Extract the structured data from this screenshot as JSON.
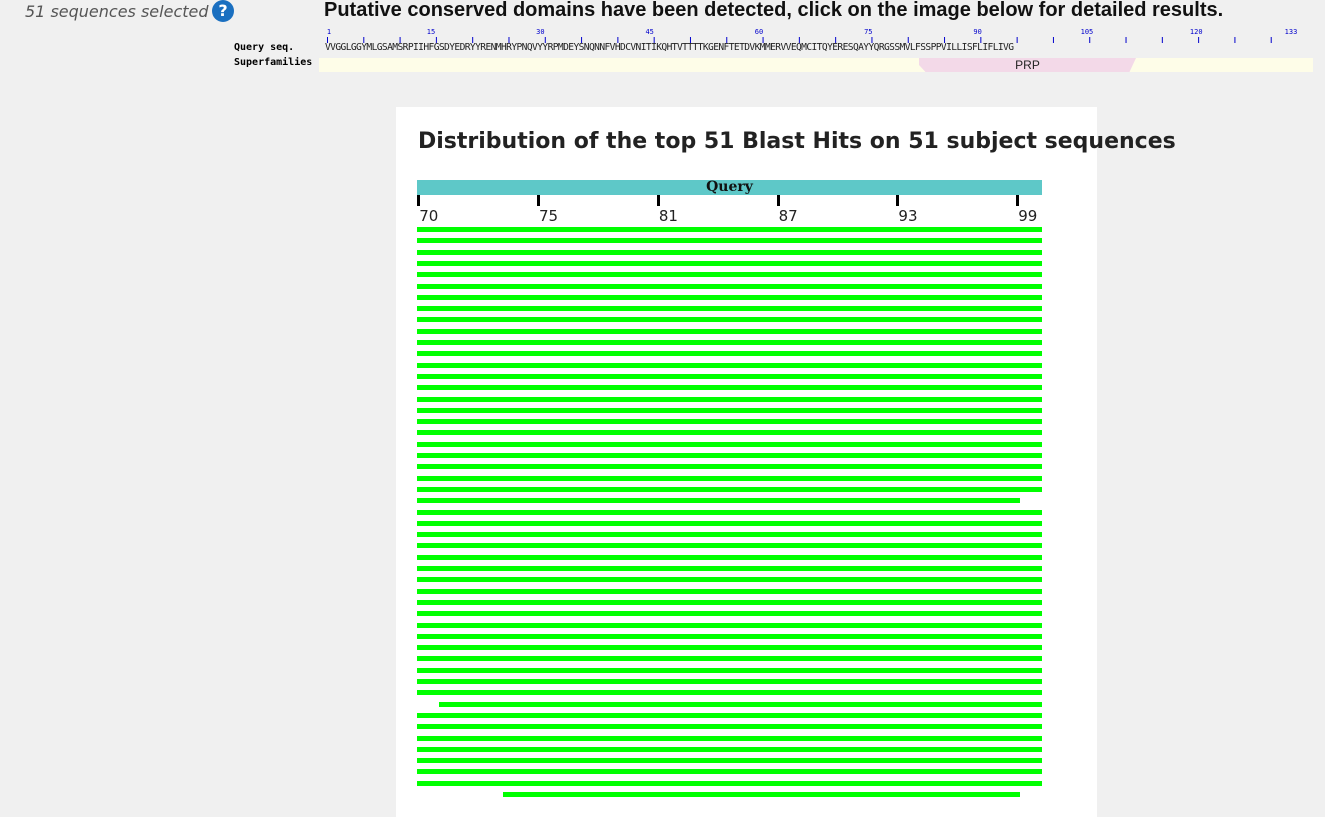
{
  "selection": {
    "label": "51 sequences selected",
    "help_glyph": "?"
  },
  "cdd": {
    "title": "Putative conserved domains have been detected, click on the image below for detailed results.",
    "query_label": "Query seq.",
    "superfamilies_label": "Superfamilies",
    "ruler_numbers": [
      "1",
      "15",
      "30",
      "45",
      "60",
      "75",
      "90",
      "105",
      "120",
      "133"
    ],
    "query_sequence": "VVGGLGGYMLGSAMSRPIIHFGSDYEDRYYRENMHRYPNQVYYRPMDEYSNQNNFVHDCVNITIKQHTVTTTTKGENFTETDVKMMERVVEQMCITQYERESQAYYQRGSSMVLFSSPPVILLISFLIFLIVG",
    "domain_name": "PRP",
    "domain_color": "#f3d9e8"
  },
  "blast": {
    "title": "Distribution of the top 51 Blast Hits on 51 subject sequences",
    "query_label": "Query",
    "tick_labels": [
      "70",
      "75",
      "81",
      "87",
      "93",
      "99"
    ],
    "axis_range": [
      70,
      99
    ],
    "hit_color": "#00ff00",
    "hits": [
      [
        70,
        99
      ],
      [
        70,
        99
      ],
      [
        70,
        99
      ],
      [
        70,
        99
      ],
      [
        70,
        99
      ],
      [
        70,
        99
      ],
      [
        70,
        99
      ],
      [
        70,
        99
      ],
      [
        70,
        99
      ],
      [
        70,
        99
      ],
      [
        70,
        99
      ],
      [
        70,
        99
      ],
      [
        70,
        99
      ],
      [
        70,
        99
      ],
      [
        70,
        99
      ],
      [
        70,
        99
      ],
      [
        70,
        99
      ],
      [
        70,
        99
      ],
      [
        70,
        99
      ],
      [
        70,
        99
      ],
      [
        70,
        99
      ],
      [
        70,
        99
      ],
      [
        70,
        99
      ],
      [
        70,
        99
      ],
      [
        70,
        98
      ],
      [
        70,
        99
      ],
      [
        70,
        99
      ],
      [
        70,
        99
      ],
      [
        70,
        99
      ],
      [
        70,
        99
      ],
      [
        70,
        99
      ],
      [
        70,
        99
      ],
      [
        70,
        99
      ],
      [
        70,
        99
      ],
      [
        70,
        99
      ],
      [
        70,
        99
      ],
      [
        70,
        99
      ],
      [
        70,
        99
      ],
      [
        70,
        99
      ],
      [
        70,
        99
      ],
      [
        70,
        99
      ],
      [
        70,
        99
      ],
      [
        71,
        99
      ],
      [
        70,
        99
      ],
      [
        70,
        99
      ],
      [
        70,
        99
      ],
      [
        70,
        99
      ],
      [
        70,
        99
      ],
      [
        70,
        99
      ],
      [
        70,
        99
      ],
      [
        74,
        98
      ]
    ]
  }
}
